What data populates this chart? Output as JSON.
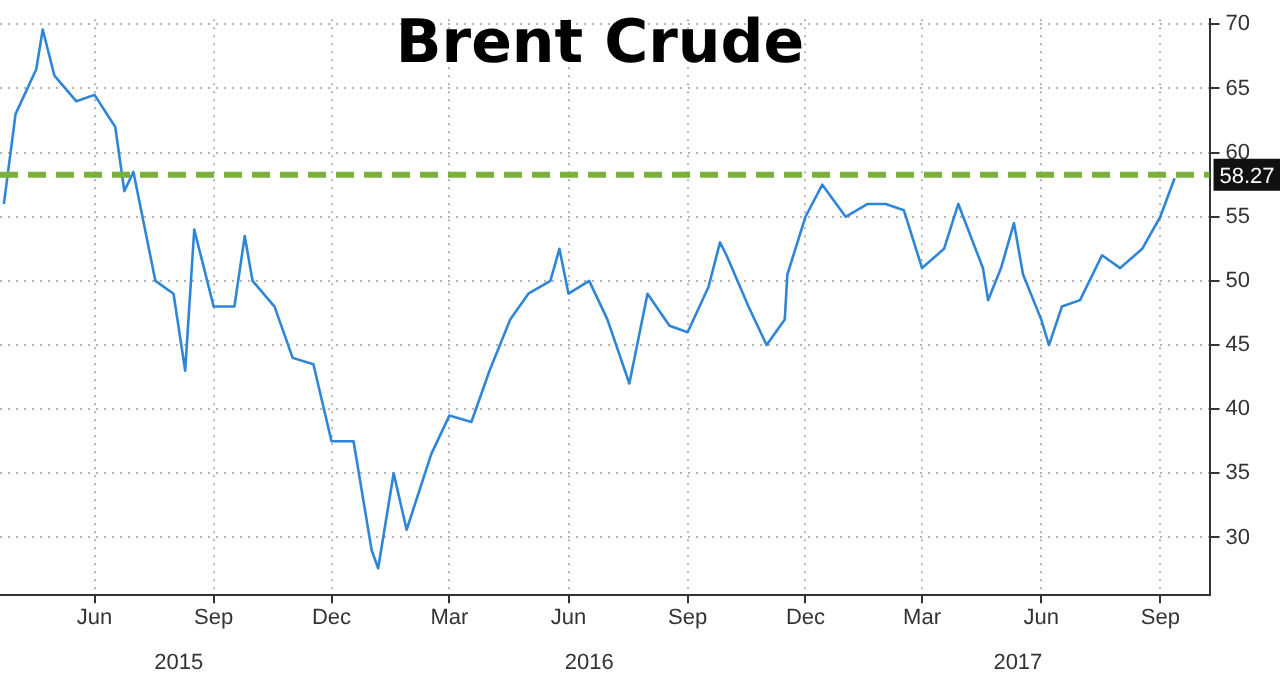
{
  "chart_data": {
    "type": "line",
    "title": "Brent Crude",
    "x": [
      "2015-04-06",
      "2015-04-15",
      "2015-05-01",
      "2015-05-06",
      "2015-05-15",
      "2015-06-01",
      "2015-06-15",
      "2015-07-01",
      "2015-07-08",
      "2015-07-15",
      "2015-08-01",
      "2015-08-15",
      "2015-08-24",
      "2015-08-31",
      "2015-09-15",
      "2015-10-01",
      "2015-10-09",
      "2015-10-15",
      "2015-11-01",
      "2015-11-15",
      "2015-12-01",
      "2015-12-15",
      "2016-01-01",
      "2016-01-15",
      "2016-01-20",
      "2016-02-01",
      "2016-02-11",
      "2016-03-01",
      "2016-03-15",
      "2016-04-01",
      "2016-04-15",
      "2016-05-01",
      "2016-05-15",
      "2016-06-01",
      "2016-06-08",
      "2016-06-15",
      "2016-07-01",
      "2016-07-15",
      "2016-08-01",
      "2016-08-15",
      "2016-09-01",
      "2016-09-15",
      "2016-10-01",
      "2016-10-10",
      "2016-10-15",
      "2016-11-01",
      "2016-11-15",
      "2016-11-29",
      "2016-12-01",
      "2016-12-15",
      "2016-12-28",
      "2017-01-15",
      "2017-02-01",
      "2017-02-15",
      "2017-03-01",
      "2017-03-15",
      "2017-04-01",
      "2017-04-12",
      "2017-05-01",
      "2017-05-05",
      "2017-05-15",
      "2017-05-25",
      "2017-06-01",
      "2017-06-15",
      "2017-06-21",
      "2017-07-01",
      "2017-07-15",
      "2017-08-01",
      "2017-08-15",
      "2017-09-01",
      "2017-09-15",
      "2017-09-26"
    ],
    "series": [
      {
        "color": "#2f86d6",
        "values": [
          56,
          63,
          66.5,
          69.6,
          66,
          64,
          64.5,
          62,
          57,
          58.5,
          50,
          49,
          43,
          54,
          48,
          48,
          53.5,
          50,
          48,
          44,
          43.5,
          37.5,
          37.5,
          29,
          27.6,
          35,
          30.6,
          36.5,
          39.5,
          39,
          43,
          47,
          49,
          50,
          52.5,
          49,
          50,
          47,
          42,
          49,
          46.5,
          46,
          49.5,
          53,
          52,
          48,
          45,
          47,
          50.5,
          55,
          57.5,
          55,
          56,
          56,
          55.5,
          51,
          52.5,
          56,
          51,
          48.5,
          51,
          54.5,
          50.5,
          47,
          45,
          48,
          48.5,
          52,
          51,
          52.5,
          55,
          58
        ]
      }
    ],
    "xlim": [
      "2015-04-03",
      "2017-10-23"
    ],
    "xticks": [
      {
        "value": "2015-06-15",
        "label": "Jun"
      },
      {
        "value": "2015-09-15",
        "label": "Sep"
      },
      {
        "value": "2015-12-15",
        "label": "Dec"
      },
      {
        "value": "2016-03-15",
        "label": "Mar"
      },
      {
        "value": "2016-06-15",
        "label": "Jun"
      },
      {
        "value": "2016-09-15",
        "label": "Sep"
      },
      {
        "value": "2016-12-15",
        "label": "Dec"
      },
      {
        "value": "2017-03-15",
        "label": "Mar"
      },
      {
        "value": "2017-06-15",
        "label": "Jun"
      },
      {
        "value": "2017-09-15",
        "label": "Sep"
      }
    ],
    "x2lim": [
      "2015-04-03",
      "2017-10-23"
    ],
    "x2ticks": [
      {
        "value": "2015-08-19",
        "label": "2015"
      },
      {
        "value": "2016-07-01",
        "label": "2016"
      },
      {
        "value": "2017-05-28",
        "label": "2017"
      }
    ],
    "ylim": [
      25.5,
      70.4
    ],
    "yticks": [
      30,
      35,
      40,
      45,
      50,
      55,
      60,
      65,
      70
    ],
    "grid": true,
    "ref_lines": [
      {
        "axis": "y",
        "value": 58.27,
        "label": "58.27",
        "color": "#7ab03c",
        "line_style": "dashed"
      }
    ]
  }
}
